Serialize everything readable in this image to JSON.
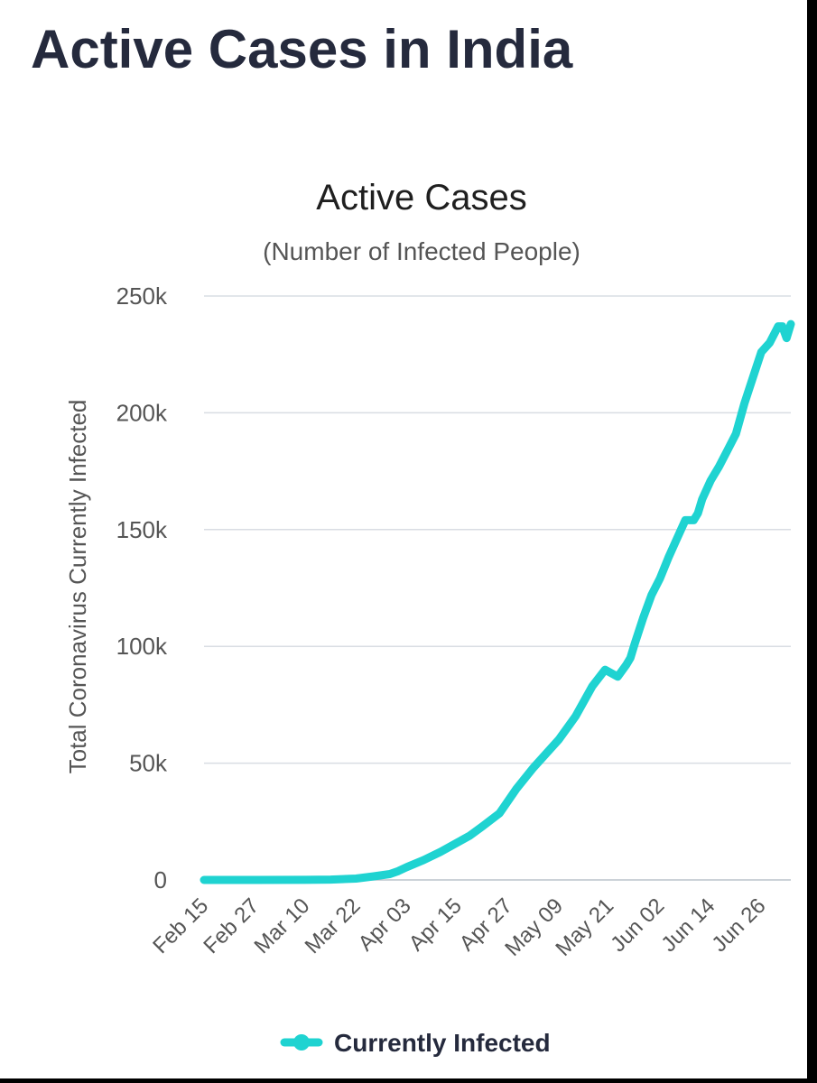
{
  "page": {
    "title": "Active Cases in India"
  },
  "chart_data": {
    "type": "line",
    "title": "Active Cases",
    "subtitle": "(Number of Infected People)",
    "xlabel": "",
    "ylabel": "Total Coronavirus Currently Infected",
    "ylim": [
      0,
      250000
    ],
    "y_ticks": [
      0,
      50000,
      100000,
      150000,
      200000,
      250000
    ],
    "y_tick_labels": [
      "0",
      "50k",
      "100k",
      "150k",
      "200k",
      "250k"
    ],
    "x_range": [
      0,
      139
    ],
    "x_ticks": [
      0,
      12,
      24,
      36,
      48,
      60,
      72,
      84,
      96,
      108,
      120,
      132
    ],
    "x_tick_labels": [
      "Feb 15",
      "Feb 27",
      "Mar 10",
      "Mar 22",
      "Apr 03",
      "Apr 15",
      "Apr 27",
      "May 09",
      "May 21",
      "Jun 02",
      "Jun 14",
      "Jun 26"
    ],
    "grid": true,
    "legend_position": "bottom-center",
    "series": [
      {
        "name": "Currently Infected",
        "color": "#1fd3d1",
        "x": [
          0,
          12,
          24,
          30,
          36,
          40,
          44,
          46,
          48,
          52,
          56,
          60,
          63,
          66,
          70,
          74,
          78,
          81,
          84,
          88,
          92,
          95,
          98,
          100,
          101,
          102,
          104,
          106,
          108,
          110,
          112,
          114,
          116,
          117,
          118,
          120,
          122,
          124,
          126,
          128,
          130,
          132,
          134,
          136,
          137,
          138,
          139
        ],
        "y": [
          3,
          3,
          40,
          150,
          580,
          1500,
          2500,
          3800,
          5500,
          8500,
          12000,
          16000,
          19000,
          23000,
          28500,
          39000,
          48000,
          54000,
          60000,
          70000,
          83000,
          90000,
          87000,
          92000,
          95000,
          101000,
          112000,
          122000,
          129000,
          138000,
          146000,
          154000,
          154000,
          157000,
          163000,
          171000,
          177000,
          184000,
          191000,
          204000,
          215000,
          226000,
          230000,
          237000,
          237000,
          232000,
          238000
        ]
      }
    ]
  }
}
